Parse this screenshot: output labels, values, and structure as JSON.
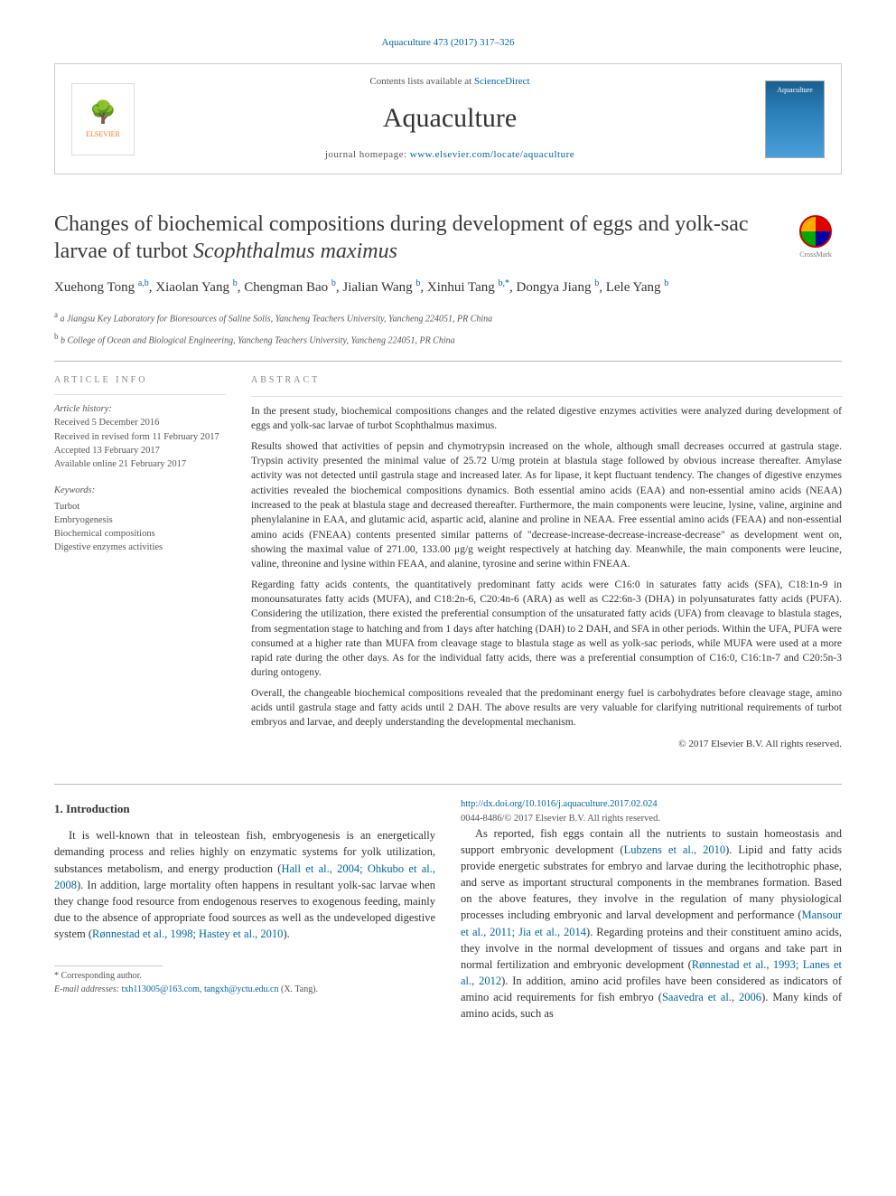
{
  "journal_ref": "Aquaculture 473 (2017) 317–326",
  "header": {
    "contents_prefix": "Contents lists available at ",
    "contents_link": "ScienceDirect",
    "journal_name": "Aquaculture",
    "homepage_prefix": "journal homepage: ",
    "homepage_url": "www.elsevier.com/locate/aquaculture",
    "elsevier_label": "ELSEVIER",
    "cover_label": "Aquaculture"
  },
  "crossmark_label": "CrossMark",
  "title_html": "Changes of biochemical compositions during development of eggs and yolk-sac larvae of turbot <em>Scophthalmus maximus</em>",
  "authors_html": "Xuehong Tong <sup>a,b</sup>, Xiaolan Yang <sup>b</sup>, Chengman Bao <sup>b</sup>, Jialian Wang <sup>b</sup>, Xinhui Tang <sup>b,*</sup>, Dongya Jiang <sup>b</sup>, Lele Yang <sup>b</sup>",
  "affiliations": [
    "a  Jiangsu Key Laboratory for Bioresources of Saline Solis, Yancheng Teachers University, Yancheng 224051, PR China",
    "b  College of Ocean and Biological Engineering, Yancheng Teachers University, Yancheng 224051, PR China"
  ],
  "article_info": {
    "heading": "article info",
    "history_label": "Article history:",
    "history": [
      "Received 5 December 2016",
      "Received in revised form 11 February 2017",
      "Accepted 13 February 2017",
      "Available online 21 February 2017"
    ],
    "keywords_label": "Keywords:",
    "keywords": [
      "Turbot",
      "Embryogenesis",
      "Biochemical compositions",
      "Digestive enzymes activities"
    ]
  },
  "abstract": {
    "heading": "abstract",
    "paragraphs": [
      "In the present study, biochemical compositions changes and the related digestive enzymes activities were analyzed during development of eggs and yolk-sac larvae of turbot Scophthalmus maximus.",
      "Results showed that activities of pepsin and chymotrypsin increased on the whole, although small decreases occurred at gastrula stage. Trypsin activity presented the minimal value of 25.72 U/mg protein at blastula stage followed by obvious increase thereafter. Amylase activity was not detected until gastrula stage and increased later. As for lipase, it kept fluctuant tendency. The changes of digestive enzymes activities revealed the biochemical compositions dynamics. Both essential amino acids (EAA) and non-essential amino acids (NEAA) increased to the peak at blastula stage and decreased thereafter. Furthermore, the main components were leucine, lysine, valine, arginine and phenylalanine in EAA, and glutamic acid, aspartic acid, alanine and proline in NEAA. Free essential amino acids (FEAA) and non-essential amino acids (FNEAA) contents presented similar patterns of \"decrease-increase-decrease-increase-decrease\" as development went on, showing the maximal value of 271.00, 133.00 μg/g weight respectively at hatching day. Meanwhile, the main components were leucine, valine, threonine and lysine within FEAA, and alanine, tyrosine and serine within FNEAA.",
      "Regarding fatty acids contents, the quantitatively predominant fatty acids were C16:0 in saturates fatty acids (SFA), C18:1n-9 in monounsaturates fatty acids (MUFA), and C18:2n-6, C20:4n-6 (ARA) as well as C22:6n-3 (DHA) in polyunsaturates fatty acids (PUFA). Considering the utilization, there existed the preferential consumption of the unsaturated fatty acids (UFA) from cleavage to blastula stages, from segmentation stage to hatching and from 1 days after hatching (DAH) to 2 DAH, and SFA in other periods. Within the UFA, PUFA were consumed at a higher rate than MUFA from cleavage stage to blastula stage as well as yolk-sac periods, while MUFA were used at a more rapid rate during the other days. As for the individual fatty acids, there was a preferential consumption of C16:0, C16:1n-7 and C20:5n-3 during ontogeny.",
      "Overall, the changeable biochemical compositions revealed that the predominant energy fuel is carbohydrates before cleavage stage, amino acids until gastrula stage and fatty acids until 2 DAH. The above results are very valuable for clarifying nutritional requirements of turbot embryos and larvae, and deeply understanding the developmental mechanism."
    ],
    "copyright": "© 2017 Elsevier B.V. All rights reserved."
  },
  "intro": {
    "heading": "1. Introduction",
    "p1_html": "It is well-known that in teleostean fish, embryogenesis is an energetically demanding process and relies highly on enzymatic systems for yolk utilization, substances metabolism, and energy production (<a href='#'>Hall et al., 2004; Ohkubo et al., 2008</a>). In addition, large mortality often happens in resultant yolk-sac larvae when they change food resource from endogenous reserves to exogenous feeding, mainly due to the absence of appropriate food sources as well as the undeveloped digestive system (<a href='#'>Rønnestad et al., 1998; Hastey et al., 2010</a>).",
    "p2_html": "As reported, fish eggs contain all the nutrients to sustain homeostasis and support embryonic development (<a href='#'>Lubzens et al., 2010</a>). Lipid and fatty acids provide energetic substrates for embryo and larvae during the lecithotrophic phase, and serve as important structural components in the membranes formation. Based on the above features, they involve in the regulation of many physiological processes including embryonic and larval development and performance (<a href='#'>Mansour et al., 2011; Jia et al., 2014</a>). Regarding proteins and their constituent amino acids, they involve in the normal development of tissues and organs and take part in normal fertilization and embryonic development (<a href='#'>Rønnestad et al., 1993; Lanes et al., 2012</a>). In addition, amino acid profiles have been considered as indicators of amino acid requirements for fish embryo (<a href='#'>Saavedra et al., 2006</a>). Many kinds of amino acids, such as"
  },
  "footnote": {
    "corr": "* Corresponding author.",
    "email_label": "E-mail addresses: ",
    "email1": "txh113005@163.com",
    "email2": "tangxh@yctu.edu.cn",
    "email_suffix": " (X. Tang)."
  },
  "doi": {
    "url": "http://dx.doi.org/10.1016/j.aquaculture.2017.02.024",
    "issn_line": "0044-8486/© 2017 Elsevier B.V. All rights reserved."
  },
  "colors": {
    "link": "#0066a1",
    "text": "#333333",
    "muted": "#555555",
    "rule": "#bbbbbb"
  }
}
